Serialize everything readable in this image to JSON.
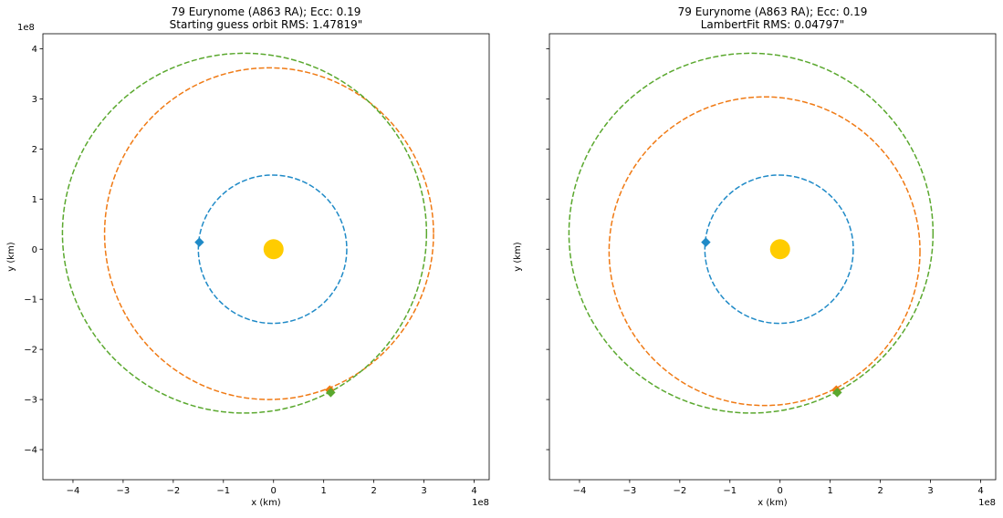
{
  "chart_data": [
    {
      "type": "line",
      "title": "79 Eurynome (A863 RA); Ecc: 0.19",
      "subtitle": "Starting guess orbit RMS: 1.47819\"",
      "xlabel": "x (km)",
      "ylabel": "y (km)",
      "x_offset_text": "1e8",
      "y_offset_text": "1e8",
      "xlim": [
        -460000000.0,
        430000000.0
      ],
      "ylim": [
        -460000000.0,
        430000000.0
      ],
      "xticks": [
        "−4",
        "−3",
        "−2",
        "−1",
        "0",
        "1",
        "2",
        "3",
        "4"
      ],
      "yticks": [
        "−4",
        "−3",
        "−2",
        "−1",
        "0",
        "1",
        "2",
        "3",
        "4"
      ],
      "grid": false,
      "sun": {
        "x": 0,
        "y": 0,
        "color": "#FFCC00"
      },
      "series": [
        {
          "color": "#1f8ac7",
          "style": "dashed",
          "ellipse": {
            "cx": -2000000.0,
            "cy": 0,
            "a": 148000000.0,
            "b": 148000000.0
          },
          "marker": {
            "x": -148000000.0,
            "y": 14000000.0
          }
        },
        {
          "color": "#f07a14",
          "style": "dashed",
          "ellipse": {
            "cx": -9000000.0,
            "cy": 31000000.0,
            "a": 328000000.0,
            "b": 331000000.0
          },
          "marker": {
            "x": 112000000.0,
            "y": -281000000.0
          }
        },
        {
          "color": "#5aa82e",
          "style": "dashed",
          "ellipse": {
            "cx": -58000000.0,
            "cy": 32000000.0,
            "a": 363000000.0,
            "b": 359000000.0
          },
          "marker": {
            "x": 114000000.0,
            "y": -286000000.0
          }
        }
      ]
    },
    {
      "type": "line",
      "title": "79 Eurynome (A863 RA); Ecc: 0.19",
      "subtitle": "LambertFit RMS: 0.04797\"",
      "xlabel": "x (km)",
      "ylabel": "y (km)",
      "x_offset_text": "1e8",
      "y_offset_text": "",
      "xlim": [
        -460000000.0,
        430000000.0
      ],
      "ylim": [
        -460000000.0,
        430000000.0
      ],
      "xticks": [
        "−4",
        "−3",
        "−2",
        "−1",
        "0",
        "1",
        "2",
        "3",
        "4"
      ],
      "yticks": [],
      "grid": false,
      "sun": {
        "x": 0,
        "y": 0,
        "color": "#FFCC00"
      },
      "series": [
        {
          "color": "#1f8ac7",
          "style": "dashed",
          "ellipse": {
            "cx": -2000000.0,
            "cy": 0,
            "a": 148000000.0,
            "b": 148000000.0
          },
          "marker": {
            "x": -148000000.0,
            "y": 14000000.0
          }
        },
        {
          "color": "#f07a14",
          "style": "dashed",
          "ellipse": {
            "cx": -31000000.0,
            "cy": -4000000.0,
            "a": 310000000.0,
            "b": 308000000.0
          },
          "marker": {
            "x": 112000000.0,
            "y": -281000000.0
          }
        },
        {
          "color": "#5aa82e",
          "style": "dashed",
          "ellipse": {
            "cx": -58000000.0,
            "cy": 32000000.0,
            "a": 363000000.0,
            "b": 359000000.0
          },
          "marker": {
            "x": 114000000.0,
            "y": -286000000.0
          }
        }
      ]
    }
  ]
}
